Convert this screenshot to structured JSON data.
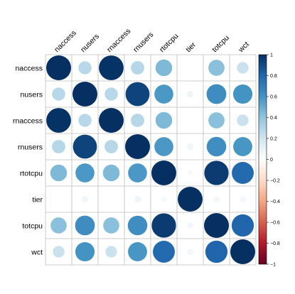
{
  "chart_data": {
    "type": "heatmap",
    "style": "circle correlation matrix",
    "variables": [
      "naccess",
      "nusers",
      "rnaccess",
      "rnusers",
      "rtotcpu",
      "tier",
      "totcpu",
      "wct"
    ],
    "matrix": [
      [
        1.0,
        0.28,
        0.99,
        0.29,
        0.45,
        0.0,
        0.42,
        0.22
      ],
      [
        0.28,
        1.0,
        0.28,
        0.93,
        0.58,
        0.07,
        0.63,
        0.6
      ],
      [
        0.99,
        0.28,
        1.0,
        0.29,
        0.45,
        0.0,
        0.42,
        0.22
      ],
      [
        0.29,
        0.93,
        0.29,
        1.0,
        0.58,
        0.07,
        0.62,
        0.59
      ],
      [
        0.45,
        0.58,
        0.45,
        0.58,
        1.0,
        0.05,
        0.96,
        0.78
      ],
      [
        0.0,
        0.07,
        0.0,
        0.07,
        0.05,
        1.0,
        0.06,
        0.06
      ],
      [
        0.42,
        0.63,
        0.42,
        0.62,
        0.96,
        0.06,
        1.0,
        0.8
      ],
      [
        0.22,
        0.6,
        0.22,
        0.59,
        0.78,
        0.06,
        0.8,
        1.0
      ]
    ],
    "colorbar": {
      "min": -1,
      "max": 1,
      "ticks": [
        "1",
        "0.8",
        "0.6",
        "0.4",
        "0.2",
        "0",
        "−0.2",
        "−0.4",
        "−0.6",
        "−0.8",
        "−1"
      ],
      "tick_values": [
        1,
        0.8,
        0.6,
        0.4,
        0.2,
        0,
        -0.2,
        -0.4,
        -0.6,
        -0.8,
        -1
      ],
      "palette": [
        "#67001F",
        "#B2182B",
        "#D6604D",
        "#F4A582",
        "#FDDBC7",
        "#FFFFFF",
        "#D1E5F0",
        "#92C5DE",
        "#4393C3",
        "#2166AC",
        "#053061"
      ]
    },
    "grid": true,
    "legend_position": "right"
  }
}
